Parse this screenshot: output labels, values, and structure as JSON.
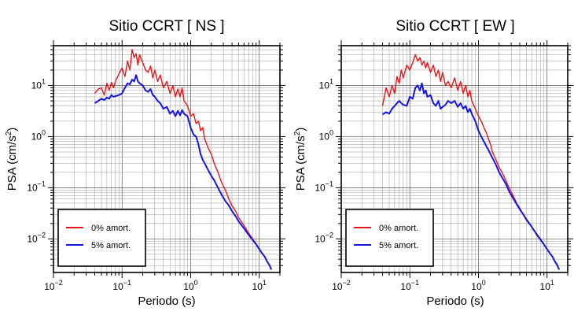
{
  "chart_data": [
    {
      "type": "line",
      "title": "Sitio CCRT [ NS ]",
      "xlabel": "Periodo (s)",
      "ylabel_main": "PSA (cm/s",
      "ylabel_sup": "2",
      "ylabel_end": ")",
      "x_scale": "log",
      "y_scale": "log",
      "xlim": [
        0.01,
        20
      ],
      "ylim": [
        0.0022,
        60
      ],
      "grid": true,
      "legend_position": "bottom-left",
      "x_ticks": [
        {
          "value": 0.01,
          "base": "10",
          "exp": "−2"
        },
        {
          "value": 0.1,
          "base": "10",
          "exp": "−1"
        },
        {
          "value": 1,
          "base": "10",
          "exp": "0"
        },
        {
          "value": 10,
          "base": "10",
          "exp": "1"
        }
      ],
      "y_ticks": [
        {
          "value": 0.01,
          "base": "10",
          "exp": "−2"
        },
        {
          "value": 0.1,
          "base": "10",
          "exp": "−1"
        },
        {
          "value": 1,
          "base": "10",
          "exp": "0"
        },
        {
          "value": 10,
          "base": "10",
          "exp": "1"
        }
      ],
      "series": [
        {
          "name": "0% amort.",
          "color": "#e8141a",
          "x": [
            0.04,
            0.045,
            0.05,
            0.055,
            0.06,
            0.065,
            0.07,
            0.075,
            0.08,
            0.09,
            0.1,
            0.11,
            0.12,
            0.13,
            0.14,
            0.15,
            0.16,
            0.17,
            0.18,
            0.2,
            0.22,
            0.24,
            0.26,
            0.28,
            0.3,
            0.33,
            0.36,
            0.4,
            0.45,
            0.5,
            0.55,
            0.6,
            0.65,
            0.7,
            0.75,
            0.8,
            0.9,
            1.0,
            1.1,
            1.2,
            1.3,
            1.4,
            1.5,
            1.6,
            1.8,
            2.0,
            2.2,
            2.5,
            2.8,
            3.2,
            3.6,
            4.0,
            4.5,
            5.0,
            6.0,
            7.0,
            8.0,
            9.0,
            10.0,
            11.0,
            12.0,
            13.0,
            14.0,
            15.0
          ],
          "y": [
            7.0,
            8.5,
            9.0,
            6.5,
            11.0,
            8.0,
            11.5,
            9.0,
            12.0,
            17.0,
            22.0,
            15.0,
            30.0,
            20.0,
            50.0,
            35.0,
            42.0,
            25.0,
            40.0,
            28.0,
            20.0,
            18.0,
            24.0,
            14.0,
            20.0,
            12.0,
            16.0,
            9.0,
            12.0,
            7.0,
            10.0,
            6.0,
            8.5,
            6.0,
            9.0,
            5.0,
            4.0,
            2.5,
            2.8,
            1.8,
            2.0,
            1.3,
            1.5,
            0.9,
            0.6,
            0.45,
            0.3,
            0.2,
            0.13,
            0.09,
            0.06,
            0.045,
            0.035,
            0.026,
            0.018,
            0.013,
            0.01,
            0.008,
            0.0065,
            0.0052,
            0.0045,
            0.0036,
            0.0031,
            0.0025
          ]
        },
        {
          "name": "5% amort.",
          "color": "#1414e6",
          "x": [
            0.04,
            0.045,
            0.05,
            0.055,
            0.06,
            0.065,
            0.07,
            0.075,
            0.08,
            0.09,
            0.1,
            0.11,
            0.12,
            0.13,
            0.14,
            0.15,
            0.16,
            0.17,
            0.18,
            0.2,
            0.22,
            0.24,
            0.26,
            0.28,
            0.3,
            0.33,
            0.36,
            0.4,
            0.45,
            0.5,
            0.55,
            0.6,
            0.65,
            0.7,
            0.75,
            0.8,
            0.9,
            1.0,
            1.1,
            1.2,
            1.3,
            1.4,
            1.5,
            1.6,
            1.8,
            2.0,
            2.2,
            2.5,
            2.8,
            3.2,
            3.6,
            4.0,
            4.5,
            5.0,
            6.0,
            7.0,
            8.0,
            9.0,
            10.0,
            11.0,
            12.0,
            13.0,
            14.0,
            15.0
          ],
          "y": [
            4.5,
            5.0,
            5.5,
            5.2,
            5.8,
            5.5,
            6.5,
            6.0,
            6.2,
            6.5,
            7.0,
            9.0,
            11.0,
            10.5,
            13.0,
            12.0,
            16.0,
            12.0,
            11.0,
            10.0,
            8.0,
            7.5,
            8.5,
            6.5,
            6.0,
            5.0,
            4.5,
            3.5,
            3.8,
            2.8,
            3.2,
            2.5,
            3.2,
            2.6,
            3.3,
            2.8,
            2.5,
            1.5,
            1.1,
            1.0,
            0.7,
            0.45,
            0.35,
            0.3,
            0.22,
            0.17,
            0.14,
            0.1,
            0.075,
            0.055,
            0.045,
            0.035,
            0.028,
            0.022,
            0.016,
            0.012,
            0.0095,
            0.0078,
            0.0063,
            0.0052,
            0.0045,
            0.0036,
            0.0031,
            0.0025
          ]
        }
      ]
    },
    {
      "type": "line",
      "title": "Sitio CCRT [ EW ]",
      "xlabel": "Periodo (s)",
      "ylabel_main": "PSA (cm/s",
      "ylabel_sup": "2",
      "ylabel_end": ")",
      "x_scale": "log",
      "y_scale": "log",
      "xlim": [
        0.01,
        20
      ],
      "ylim": [
        0.0022,
        60
      ],
      "grid": true,
      "legend_position": "bottom-left",
      "x_ticks": [
        {
          "value": 0.01,
          "base": "10",
          "exp": "−2"
        },
        {
          "value": 0.1,
          "base": "10",
          "exp": "−1"
        },
        {
          "value": 1,
          "base": "10",
          "exp": "0"
        },
        {
          "value": 10,
          "base": "10",
          "exp": "1"
        }
      ],
      "y_ticks": [
        {
          "value": 0.01,
          "base": "10",
          "exp": "−2"
        },
        {
          "value": 0.1,
          "base": "10",
          "exp": "−1"
        },
        {
          "value": 1,
          "base": "10",
          "exp": "0"
        },
        {
          "value": 10,
          "base": "10",
          "exp": "1"
        }
      ],
      "series": [
        {
          "name": "0% amort.",
          "color": "#e8141a",
          "x": [
            0.04,
            0.045,
            0.05,
            0.055,
            0.06,
            0.065,
            0.07,
            0.075,
            0.08,
            0.09,
            0.1,
            0.11,
            0.12,
            0.13,
            0.14,
            0.15,
            0.16,
            0.17,
            0.18,
            0.2,
            0.22,
            0.24,
            0.26,
            0.28,
            0.3,
            0.33,
            0.36,
            0.4,
            0.45,
            0.5,
            0.55,
            0.6,
            0.65,
            0.7,
            0.75,
            0.8,
            0.9,
            1.0,
            1.1,
            1.2,
            1.3,
            1.4,
            1.5,
            1.6,
            1.8,
            2.0,
            2.2,
            2.5,
            2.8,
            3.2,
            3.6,
            4.0,
            4.5,
            5.0,
            6.0,
            7.0,
            8.0,
            9.0,
            10.0,
            11.0,
            12.0,
            13.0,
            14.0,
            15.0
          ],
          "y": [
            4.0,
            9.0,
            6.0,
            10.0,
            7.0,
            15.0,
            11.0,
            20.0,
            14.0,
            25.0,
            20.0,
            28.0,
            40.0,
            30.0,
            35.0,
            25.0,
            30.0,
            22.0,
            28.0,
            18.0,
            25.0,
            15.0,
            20.0,
            12.0,
            18.0,
            10.0,
            12.0,
            9.0,
            14.0,
            8.0,
            12.0,
            7.0,
            10.0,
            6.0,
            8.0,
            5.0,
            3.5,
            2.5,
            2.0,
            1.5,
            1.2,
            0.9,
            0.7,
            0.5,
            0.35,
            0.25,
            0.2,
            0.14,
            0.1,
            0.07,
            0.05,
            0.04,
            0.03,
            0.023,
            0.017,
            0.012,
            0.0095,
            0.0078,
            0.0063,
            0.0052,
            0.0045,
            0.0036,
            0.0031,
            0.0025
          ]
        },
        {
          "name": "5% amort.",
          "color": "#1414e6",
          "x": [
            0.04,
            0.045,
            0.05,
            0.055,
            0.06,
            0.065,
            0.07,
            0.075,
            0.08,
            0.09,
            0.1,
            0.11,
            0.12,
            0.13,
            0.14,
            0.15,
            0.16,
            0.17,
            0.18,
            0.2,
            0.22,
            0.24,
            0.26,
            0.28,
            0.3,
            0.33,
            0.36,
            0.4,
            0.45,
            0.5,
            0.55,
            0.6,
            0.65,
            0.7,
            0.75,
            0.8,
            0.9,
            1.0,
            1.1,
            1.2,
            1.3,
            1.4,
            1.5,
            1.6,
            1.8,
            2.0,
            2.2,
            2.5,
            2.8,
            3.2,
            3.6,
            4.0,
            4.5,
            5.0,
            6.0,
            7.0,
            8.0,
            9.0,
            10.0,
            11.0,
            12.0,
            13.0,
            14.0,
            15.0
          ],
          "y": [
            2.7,
            3.0,
            2.8,
            3.5,
            4.0,
            4.5,
            5.0,
            4.5,
            4.2,
            4.0,
            6.0,
            5.5,
            9.0,
            10.0,
            8.0,
            11.0,
            7.0,
            8.0,
            6.0,
            6.5,
            4.5,
            4.0,
            5.0,
            3.5,
            3.8,
            4.2,
            5.0,
            4.5,
            5.0,
            3.8,
            4.5,
            3.5,
            4.0,
            3.0,
            3.5,
            2.8,
            2.0,
            1.3,
            1.0,
            0.8,
            0.65,
            0.55,
            0.45,
            0.38,
            0.28,
            0.2,
            0.16,
            0.12,
            0.085,
            0.062,
            0.048,
            0.038,
            0.03,
            0.024,
            0.017,
            0.0125,
            0.0098,
            0.0078,
            0.0063,
            0.0052,
            0.0045,
            0.0036,
            0.0031,
            0.0025
          ]
        }
      ]
    }
  ]
}
